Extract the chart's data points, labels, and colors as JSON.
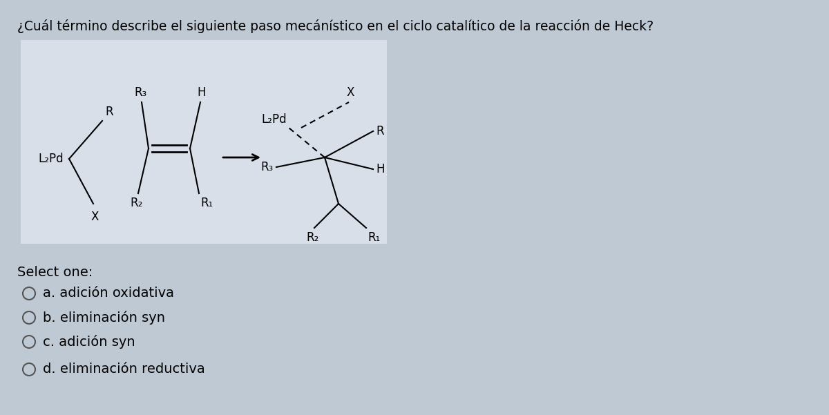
{
  "title": "¿Cuál término describe el siguiente paso mecánístico en el ciclo catalítico de la reacción de Heck?",
  "page_bg": "#bfc9d4",
  "box_bg": "#d8dfe8",
  "select_one": "Select one:",
  "options": [
    "a. adición oxidativa",
    "b. eliminación syn",
    "c. adición syn",
    "d. eliminación reductiva"
  ],
  "title_fontsize": 13.5,
  "option_fontsize": 14,
  "select_fontsize": 14,
  "chem_fontsize": 12
}
